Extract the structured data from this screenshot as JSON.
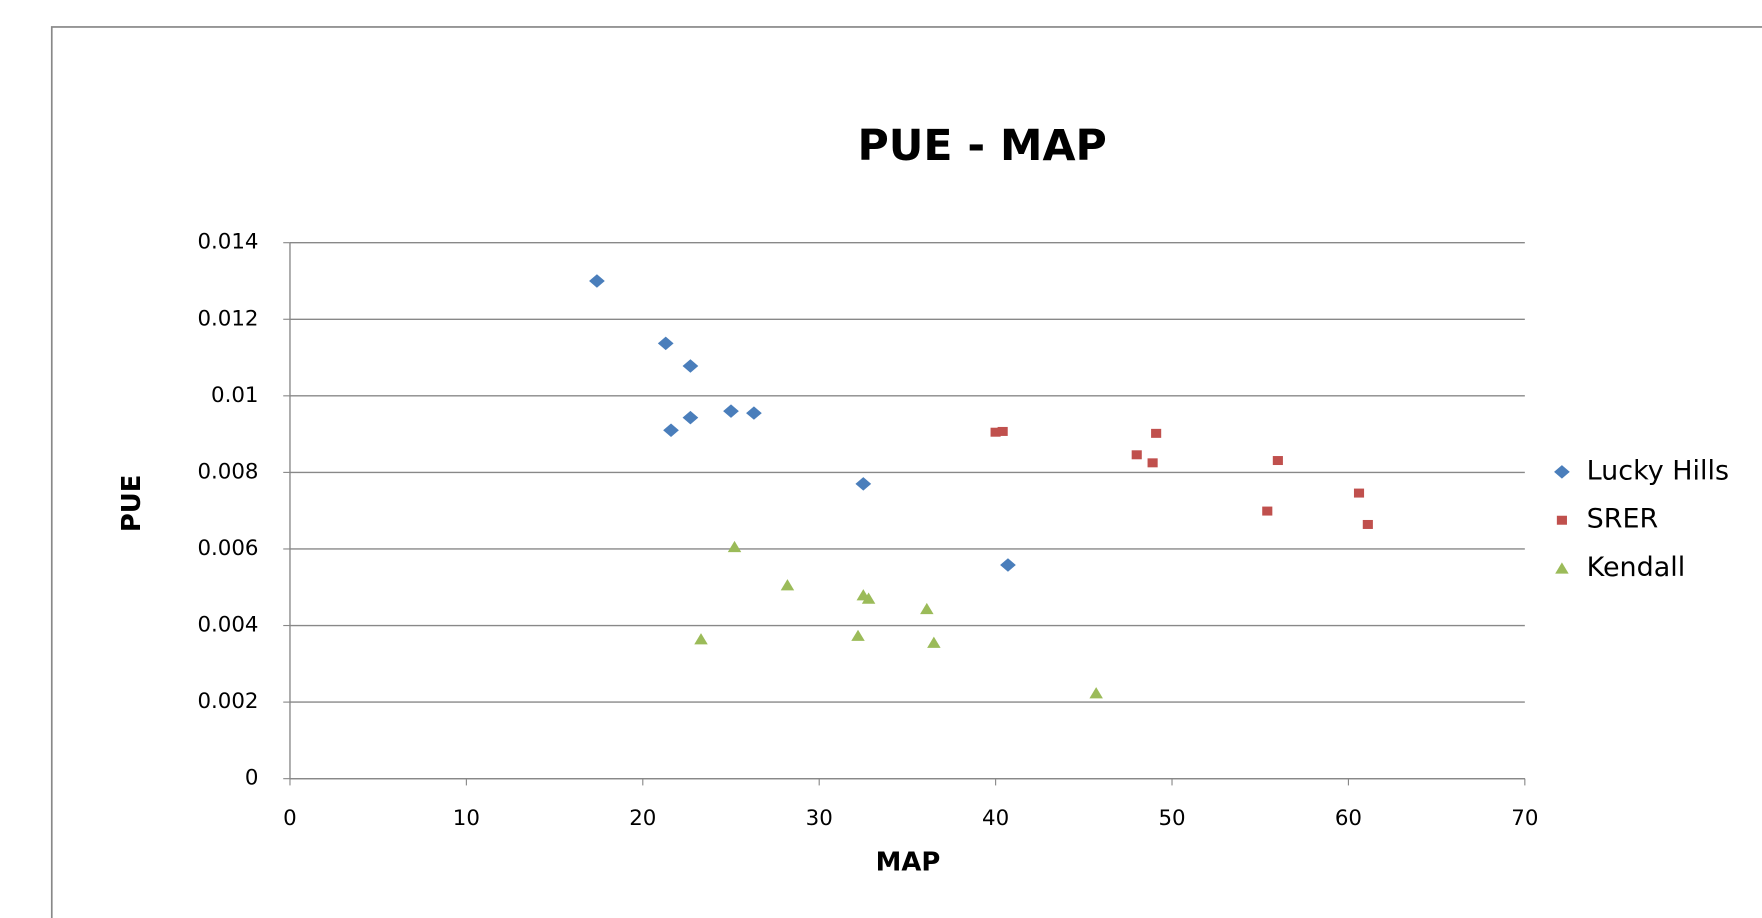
{
  "chart_data": {
    "type": "scatter",
    "title": "PUE - MAP",
    "x_label": "MAP",
    "y_label": "PUE",
    "xlim": [
      0,
      70
    ],
    "xticks": [
      0,
      10,
      20,
      30,
      40,
      50,
      60,
      70
    ],
    "ylim": [
      0,
      0.014
    ],
    "yticks": [
      0,
      0.002,
      0.004,
      0.006,
      0.008,
      0.01,
      0.012,
      0.014
    ],
    "grid": true,
    "legend": "right",
    "series": [
      {
        "name": "Lucky Hills",
        "color": "#4a7ebb",
        "marker": "diamond",
        "x": [
          17.4,
          21.3,
          22.7,
          21.6,
          22.7,
          25.0,
          26.3,
          32.5,
          40.7
        ],
        "values": [
          0.013,
          0.01137,
          0.01078,
          0.0091,
          0.00943,
          0.0096,
          0.00955,
          0.0077,
          0.00558
        ]
      },
      {
        "name": "SRER",
        "color": "#c0504d",
        "marker": "square",
        "x": [
          40.0,
          40.4,
          48.0,
          48.9,
          49.1,
          56.0,
          55.4,
          60.6,
          61.1
        ],
        "values": [
          0.00905,
          0.00907,
          0.00846,
          0.00825,
          0.00902,
          0.00831,
          0.00699,
          0.00746,
          0.00664
        ]
      },
      {
        "name": "Kendall",
        "color": "#9bbb59",
        "marker": "triangle",
        "x": [
          25.2,
          28.2,
          23.3,
          32.5,
          32.8,
          32.2,
          36.1,
          36.5,
          45.7
        ],
        "values": [
          0.00605,
          0.00505,
          0.00364,
          0.00479,
          0.0047,
          0.00373,
          0.00443,
          0.00355,
          0.00223
        ]
      }
    ]
  }
}
